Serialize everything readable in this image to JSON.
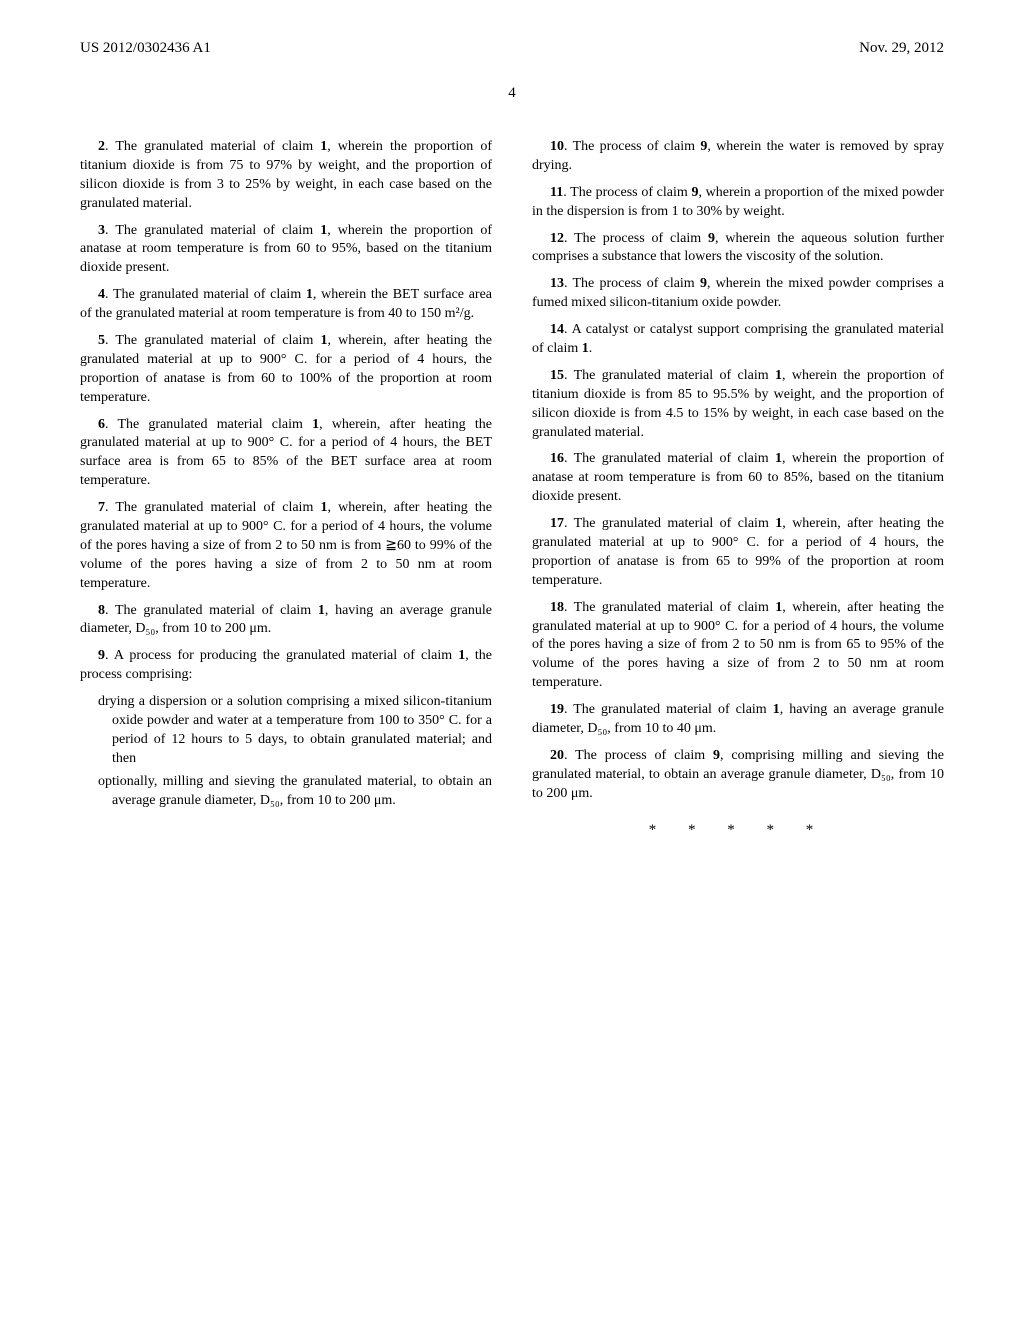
{
  "header": {
    "pub_number": "US 2012/0302436 A1",
    "pub_date": "Nov. 29, 2012"
  },
  "page_number": "4",
  "left_claims": [
    {
      "num": "2",
      "text": ". The granulated material of claim ",
      "ref": "1",
      "rest": ", wherein the proportion of titanium dioxide is from 75 to 97% by weight, and the proportion of silicon dioxide is from 3 to 25% by weight, in each case based on the granulated material."
    },
    {
      "num": "3",
      "text": ". The granulated material of claim ",
      "ref": "1",
      "rest": ", wherein the proportion of anatase at room temperature is from 60 to 95%, based on the titanium dioxide present."
    },
    {
      "num": "4",
      "text": ". The granulated material of claim ",
      "ref": "1",
      "rest": ", wherein the BET surface area of the granulated material at room temperature is from 40 to 150 m²/g."
    },
    {
      "num": "5",
      "text": ". The granulated material of claim ",
      "ref": "1",
      "rest": ", wherein, after heating the granulated material at up to 900° C. for a period of 4 hours, the proportion of anatase is from 60 to 100% of the proportion at room temperature."
    },
    {
      "num": "6",
      "text": ". The granulated material claim ",
      "ref": "1",
      "rest": ", wherein, after heating the granulated material at up to 900° C. for a period of 4 hours, the BET surface area is from 65 to 85% of the BET surface area at room temperature."
    },
    {
      "num": "7",
      "text": ". The granulated material of claim ",
      "ref": "1",
      "rest": ", wherein, after heating the granulated material at up to 900° C. for a period of 4 hours, the volume of the pores having a size of from 2 to 50 nm is from ≧60 to 99% of the volume of the pores having a size of from 2 to 50 nm at room temperature."
    },
    {
      "num": "8",
      "text": ". The granulated material of claim ",
      "ref": "1",
      "rest": ", having an average granule diameter, D₅₀, from 10 to 200 μm."
    },
    {
      "num": "9",
      "text": ". A process for producing the granulated material of claim ",
      "ref": "1",
      "rest": ", the process comprising:"
    }
  ],
  "claim9_subs": [
    "drying a dispersion or a solution comprising a mixed silicon-titanium oxide powder and water at a temperature from 100 to 350° C. for a period of 12 hours to 5 days, to obtain granulated material; and then",
    "optionally, milling and sieving the granulated material, to obtain an average granule diameter, D₅₀, from 10 to 200 μm."
  ],
  "right_claims": [
    {
      "num": "10",
      "text": ". The process of claim ",
      "ref": "9",
      "rest": ", wherein the water is removed by spray drying."
    },
    {
      "num": "11",
      "text": ". The process of claim ",
      "ref": "9",
      "rest": ", wherein a proportion of the mixed powder in the dispersion is from 1 to 30% by weight."
    },
    {
      "num": "12",
      "text": ". The process of claim ",
      "ref": "9",
      "rest": ", wherein the aqueous solution further comprises a substance that lowers the viscosity of the solution."
    },
    {
      "num": "13",
      "text": ". The process of claim ",
      "ref": "9",
      "rest": ", wherein the mixed powder comprises a fumed mixed silicon-titanium oxide powder."
    },
    {
      "num": "14",
      "text": ". A catalyst or catalyst support comprising the granulated material of claim ",
      "ref": "1",
      "rest": "."
    },
    {
      "num": "15",
      "text": ". The granulated material of claim ",
      "ref": "1",
      "rest": ", wherein the proportion of titanium dioxide is from 85 to 95.5% by weight, and the proportion of silicon dioxide is from 4.5 to 15% by weight, in each case based on the granulated material."
    },
    {
      "num": "16",
      "text": ". The granulated material of claim ",
      "ref": "1",
      "rest": ", wherein the proportion of anatase at room temperature is from 60 to 85%, based on the titanium dioxide present."
    },
    {
      "num": "17",
      "text": ". The granulated material of claim ",
      "ref": "1",
      "rest": ", wherein, after heating the granulated material at up to 900° C. for a period of 4 hours, the proportion of anatase is from 65 to 99% of the proportion at room temperature."
    },
    {
      "num": "18",
      "text": ". The granulated material of claim ",
      "ref": "1",
      "rest": ", wherein, after heating the granulated material at up to 900° C. for a period of 4 hours, the volume of the pores having a size of from 2 to 50 nm is from 65 to 95% of the volume of the pores having a size of from 2 to 50 nm at room temperature."
    },
    {
      "num": "19",
      "text": ". The granulated material of claim ",
      "ref": "1",
      "rest": ", having an average granule diameter, D₅₀, from 10 to 40 μm."
    },
    {
      "num": "20",
      "text": ". The process of claim ",
      "ref": "9",
      "rest": ", comprising milling and sieving the granulated material, to obtain an average granule diameter, D₅₀, from 10 to 200 μm."
    }
  ],
  "asterisks": "* * * * *"
}
